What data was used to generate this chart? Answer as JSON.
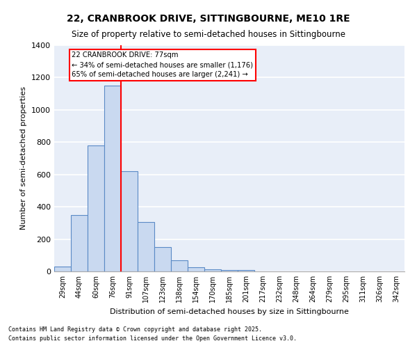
{
  "title": "22, CRANBROOK DRIVE, SITTINGBOURNE, ME10 1RE",
  "subtitle": "Size of property relative to semi-detached houses in Sittingbourne",
  "xlabel": "Distribution of semi-detached houses by size in Sittingbourne",
  "ylabel": "Number of semi-detached properties",
  "bar_values": [
    30,
    350,
    780,
    1150,
    620,
    305,
    150,
    70,
    25,
    15,
    10,
    10,
    0,
    0,
    0,
    0,
    0,
    0,
    0,
    0,
    0
  ],
  "bin_labels": [
    "29sqm",
    "44sqm",
    "60sqm",
    "76sqm",
    "91sqm",
    "107sqm",
    "123sqm",
    "138sqm",
    "154sqm",
    "170sqm",
    "185sqm",
    "201sqm",
    "217sqm",
    "232sqm",
    "248sqm",
    "264sqm",
    "279sqm",
    "295sqm",
    "311sqm",
    "326sqm",
    "342sqm"
  ],
  "bar_color": "#c9d9f0",
  "bar_edge_color": "#5a8ac6",
  "background_color": "#e8eef8",
  "grid_color": "#ffffff",
  "red_line_x": 3.5,
  "annotation_line1": "22 CRANBROOK DRIVE: 77sqm",
  "annotation_line2": "← 34% of semi-detached houses are smaller (1,176)",
  "annotation_line3": "65% of semi-detached houses are larger (2,241) →",
  "ylim": [
    0,
    1400
  ],
  "yticks": [
    0,
    200,
    400,
    600,
    800,
    1000,
    1200,
    1400
  ],
  "footnote1": "Contains HM Land Registry data © Crown copyright and database right 2025.",
  "footnote2": "Contains public sector information licensed under the Open Government Licence v3.0."
}
